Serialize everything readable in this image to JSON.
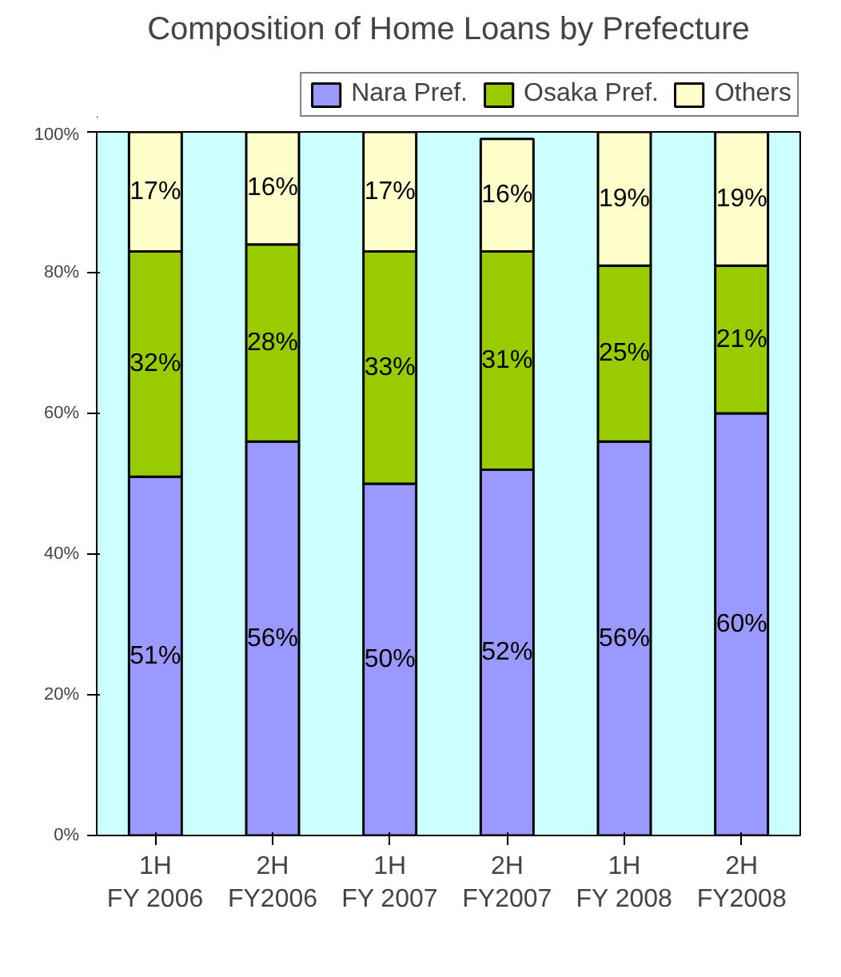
{
  "chart_data": {
    "type": "bar",
    "title": "Composition of Home Loans by Prefecture",
    "stacked": true,
    "categories": [
      "1H\nFY 2006",
      "2H\nFY2006",
      "1H\nFY 2007",
      "2H\nFY2007",
      "1H\nFY 2008",
      "2H\nFY2008"
    ],
    "series": [
      {
        "name": "Nara Pref.",
        "color": "#9999ff",
        "values": [
          51,
          56,
          50,
          52,
          56,
          60
        ],
        "value_labels": [
          "51%",
          "56%",
          "50%",
          "52%",
          "56%",
          "60%"
        ]
      },
      {
        "name": "Osaka Pref.",
        "color": "#99cc00",
        "values": [
          32,
          28,
          33,
          31,
          25,
          21
        ],
        "value_labels": [
          "32%",
          "28%",
          "33%",
          "31%",
          "25%",
          "21%"
        ]
      },
      {
        "name": "Others",
        "color": "#ffffcc",
        "values": [
          17,
          16,
          17,
          16,
          19,
          19
        ],
        "value_labels": [
          "17%",
          "16%",
          "17%",
          "16%",
          "19%",
          "19%"
        ]
      }
    ],
    "ylim": [
      0,
      100
    ],
    "yticks": [
      {
        "value": 0,
        "label": "0%"
      },
      {
        "value": 20,
        "label": "20%"
      },
      {
        "value": 40,
        "label": "40%"
      },
      {
        "value": 60,
        "label": "60%"
      },
      {
        "value": 80,
        "label": "80%"
      },
      {
        "value": 100,
        "label": "100%"
      }
    ],
    "grid": false,
    "legend": "top right"
  }
}
